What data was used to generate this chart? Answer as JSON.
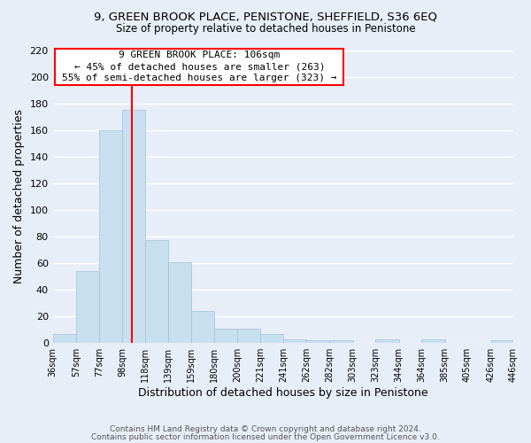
{
  "title": "9, GREEN BROOK PLACE, PENISTONE, SHEFFIELD, S36 6EQ",
  "subtitle": "Size of property relative to detached houses in Penistone",
  "xlabel": "Distribution of detached houses by size in Penistone",
  "ylabel": "Number of detached properties",
  "bar_left_edges": [
    36,
    57,
    77,
    98,
    118,
    139,
    159,
    180,
    200,
    221,
    241,
    262,
    282,
    303,
    323,
    344,
    364,
    385,
    405,
    426
  ],
  "bar_heights": [
    7,
    54,
    160,
    175,
    77,
    61,
    24,
    11,
    11,
    7,
    3,
    2,
    2,
    0,
    3,
    0,
    3,
    0,
    0,
    2
  ],
  "bar_widths": [
    21,
    20,
    21,
    20,
    21,
    20,
    21,
    20,
    21,
    20,
    21,
    20,
    21,
    20,
    21,
    20,
    21,
    20,
    21,
    20
  ],
  "bar_color": "#c8dff0",
  "bar_edgecolor": "#a0c0d8",
  "tick_labels": [
    "36sqm",
    "57sqm",
    "77sqm",
    "98sqm",
    "118sqm",
    "139sqm",
    "159sqm",
    "180sqm",
    "200sqm",
    "221sqm",
    "241sqm",
    "262sqm",
    "282sqm",
    "303sqm",
    "323sqm",
    "344sqm",
    "364sqm",
    "385sqm",
    "405sqm",
    "426sqm",
    "446sqm"
  ],
  "tick_positions": [
    36,
    57,
    77,
    98,
    118,
    139,
    159,
    180,
    200,
    221,
    241,
    262,
    282,
    303,
    323,
    344,
    364,
    385,
    405,
    426,
    446
  ],
  "ylim": [
    0,
    220
  ],
  "yticks": [
    0,
    20,
    40,
    60,
    80,
    100,
    120,
    140,
    160,
    180,
    200,
    220
  ],
  "xlim": [
    36,
    446
  ],
  "redline_x": 106,
  "annotation_title": "9 GREEN BROOK PLACE: 106sqm",
  "annotation_line1": "← 45% of detached houses are smaller (263)",
  "annotation_line2": "55% of semi-detached houses are larger (323) →",
  "footer1": "Contains HM Land Registry data © Crown copyright and database right 2024.",
  "footer2": "Contains public sector information licensed under the Open Government Licence v3.0.",
  "background_color": "#e8eef8",
  "grid_color": "#ffffff"
}
